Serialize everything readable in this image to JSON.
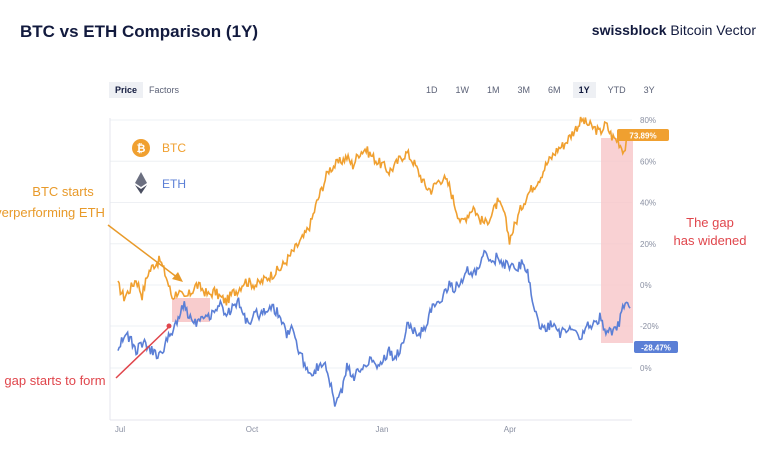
{
  "header": {
    "title": "BTC vs ETH Comparison (1Y)",
    "brand_bold": "swissblock",
    "brand_rest": " Bitcoin Vector"
  },
  "toggles": {
    "price": "Price",
    "factors": "Factors"
  },
  "ranges": [
    "1D",
    "1W",
    "1M",
    "3M",
    "6M",
    "1Y",
    "YTD",
    "3Y"
  ],
  "active_range": "1Y",
  "legend": [
    {
      "name": "BTC",
      "color": "#f0a030",
      "icon": "bitcoin-icon"
    },
    {
      "name": "ETH",
      "color": "#5b7fd6",
      "icon": "ethereum-icon"
    }
  ],
  "annotations": {
    "btc_start_line1": "BTC starts",
    "btc_start_line2": "verperforming ETH",
    "gap_widened_line1": "The gap",
    "gap_widened_line2": "has widened",
    "gap_forms": "gap starts to form"
  },
  "colors": {
    "btc": "#f0a030",
    "eth": "#5b7fd6",
    "annotation_red": "#e0464c",
    "gap_fill": "#f7c6c8"
  },
  "chart_data": {
    "type": "line",
    "x_tick_labels": [
      "Jul",
      "Oct",
      "Jan",
      "Apr"
    ],
    "btc_axis": {
      "ticks": [
        "80%",
        "60%",
        "40%",
        "20%",
        "0%"
      ],
      "values": [
        80,
        60,
        40,
        20,
        0
      ]
    },
    "eth_axis": {
      "ticks": [
        "-20%",
        "0%"
      ],
      "values": [
        -20,
        0
      ]
    },
    "end_labels": {
      "btc": "73.89%",
      "eth": "-28.47%"
    },
    "series": [
      {
        "name": "BTC",
        "axis": "btc",
        "values": [
          0,
          -6,
          -2,
          3,
          -5,
          6,
          10,
          12,
          4,
          -6,
          -3,
          -7,
          -4,
          0,
          -2,
          -5,
          -3,
          -6,
          -8,
          -4,
          -2,
          2,
          1,
          0,
          2,
          4,
          6,
          8,
          12,
          16,
          20,
          24,
          30,
          40,
          48,
          56,
          58,
          60,
          62,
          58,
          64,
          66,
          63,
          60,
          58,
          55,
          58,
          62,
          64,
          60,
          54,
          48,
          46,
          50,
          52,
          48,
          38,
          30,
          34,
          38,
          32,
          30,
          34,
          40,
          36,
          22,
          30,
          38,
          44,
          48,
          52,
          58,
          62,
          66,
          68,
          72,
          76,
          80,
          78,
          76,
          74,
          78,
          72,
          70,
          65,
          73.89
        ]
      },
      {
        "name": "ETH",
        "axis": "eth",
        "values": [
          -10,
          -16,
          -14,
          -8,
          -12,
          -10,
          -7,
          -6,
          -12,
          -18,
          -24,
          -30,
          -24,
          -22,
          -26,
          -24,
          -28,
          -30,
          -26,
          -28,
          -32,
          -24,
          -22,
          -26,
          -25,
          -30,
          -28,
          -24,
          -16,
          -20,
          -8,
          -2,
          2,
          0,
          -3,
          4,
          18,
          12,
          0,
          4,
          2,
          -2,
          -5,
          -1,
          -4,
          -8,
          -4,
          -10,
          -20,
          -18,
          -16,
          -20,
          -28,
          -30,
          -34,
          -40,
          -38,
          -42,
          -46,
          -44,
          -48,
          -55,
          -50,
          -53,
          -50,
          -48,
          -47,
          -50,
          -45,
          -30,
          -20,
          -18,
          -22,
          -16,
          -18,
          -20,
          -18,
          -14,
          -22,
          -20,
          -24,
          -18,
          -16,
          -20,
          -30,
          -28.47
        ]
      }
    ]
  }
}
